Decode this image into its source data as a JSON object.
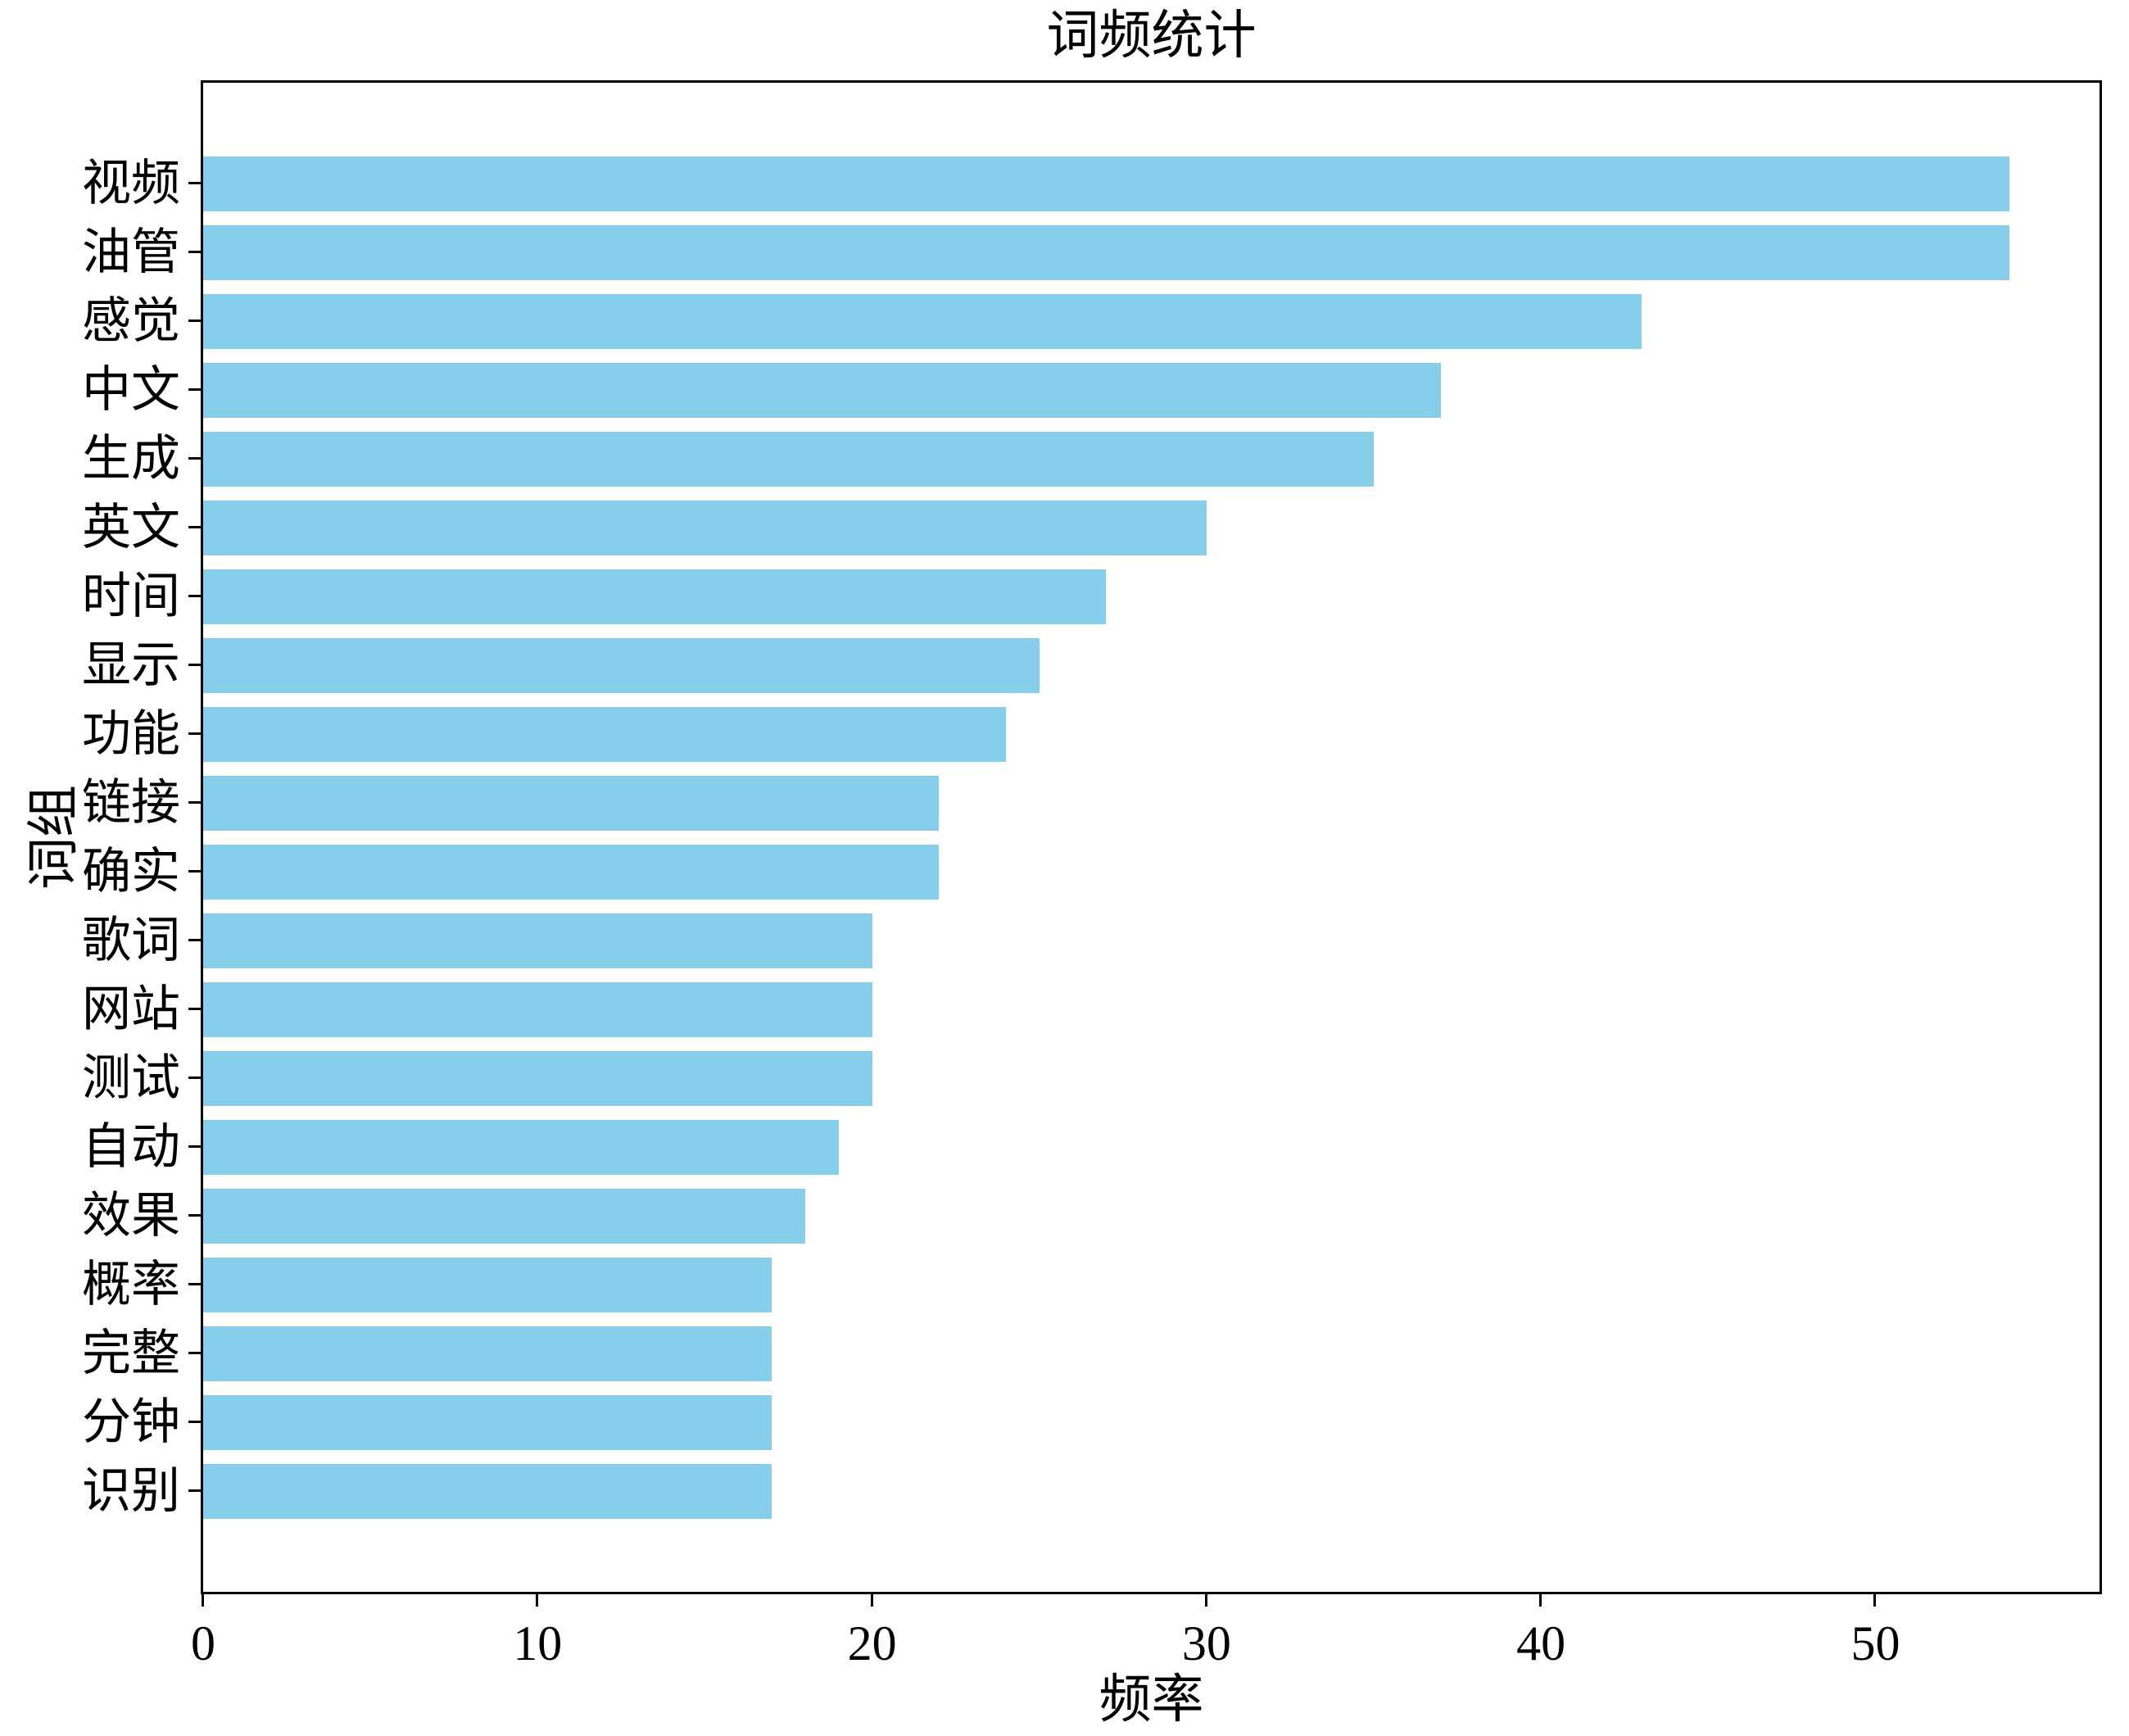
{
  "figure": {
    "background": "#ffffff",
    "text_color": "#000000",
    "spine_color": "#000000"
  },
  "chart_data": {
    "type": "bar",
    "orientation": "horizontal",
    "title": "词频统计",
    "xlabel": "频率",
    "ylabel": "词组",
    "categories": [
      "视频",
      "油管",
      "感觉",
      "中文",
      "生成",
      "英文",
      "时间",
      "显示",
      "功能",
      "链接",
      "确实",
      "歌词",
      "网站",
      "测试",
      "自动",
      "效果",
      "概率",
      "完整",
      "分钟",
      "识别"
    ],
    "values": [
      54,
      54,
      43,
      37,
      35,
      30,
      27,
      25,
      24,
      22,
      22,
      20,
      20,
      20,
      19,
      18,
      17,
      17,
      17,
      17
    ],
    "xticks": [
      0,
      10,
      20,
      30,
      40,
      50
    ],
    "xlim": [
      0,
      56.7
    ],
    "bar_color": "#87CEEB",
    "grid": false,
    "legend": null
  }
}
